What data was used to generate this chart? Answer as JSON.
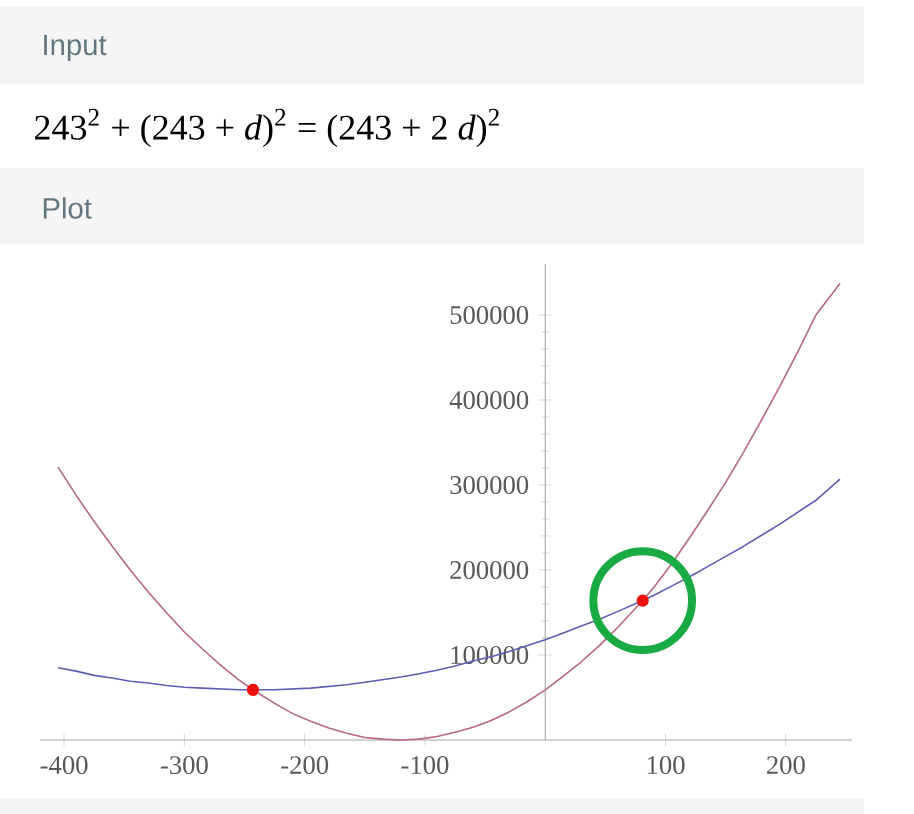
{
  "chart_data": {
    "type": "line",
    "title": "243$^{2}$ + (243 + *d*)$^{2}$ = (243 + 2 *d*)$^{2}$",
    "annotations": [
      "Input",
      "Plot"
    ],
    "xlim": [
      -420,
      255
    ],
    "ylim": [
      0,
      560000
    ],
    "xticks": [
      -400,
      -300,
      -200,
      -100,
      100,
      200
    ],
    "yticks": [
      100000,
      200000,
      300000,
      400000,
      500000
    ],
    "grid": false,
    "series": [
      {
        "color": "#5d5db5",
        "marker": "none",
        "x": [
          -405,
          -390,
          -375,
          -360,
          -345,
          -330,
          -315,
          -300,
          -285,
          -270,
          -255,
          -243,
          -225,
          -210,
          -195,
          -180,
          -165,
          -150,
          -135,
          -120,
          -105,
          -90,
          -75,
          -60,
          -45,
          -30,
          -15,
          0,
          15,
          30,
          45,
          60,
          81,
          90,
          105,
          120,
          135,
          150,
          165,
          180,
          195,
          210,
          225,
          245
        ],
        "values": [
          85000,
          81000,
          76000,
          73000,
          69000,
          67000,
          64000,
          62000,
          61000,
          60000,
          59000,
          59000,
          59000,
          60000,
          61000,
          63000,
          65000,
          68000,
          71000,
          74000,
          78000,
          82000,
          87000,
          93000,
          98000,
          104000,
          111000,
          118000,
          126000,
          134000,
          142000,
          151000,
          164000,
          170000,
          181000,
          192000,
          204000,
          216000,
          228000,
          241000,
          254000,
          268000,
          282000,
          307000
        ]
      },
      {
        "color": "#b8677f",
        "marker": "none",
        "x": [
          -405,
          -390,
          -375,
          -360,
          -345,
          -330,
          -315,
          -300,
          -285,
          -270,
          -255,
          -243,
          -225,
          -210,
          -195,
          -180,
          -165,
          -150,
          -135,
          -120,
          -105,
          -90,
          -75,
          -60,
          -45,
          -30,
          -15,
          0,
          15,
          30,
          45,
          60,
          81,
          90,
          105,
          120,
          135,
          150,
          165,
          180,
          195,
          210,
          225,
          245
        ],
        "values": [
          321000,
          288000,
          257000,
          228000,
          200000,
          174000,
          150000,
          127000,
          107000,
          88000,
          71000,
          59000,
          43000,
          31000,
          22000,
          14000,
          8000,
          3000,
          1000,
          0,
          1000,
          4000,
          9000,
          15000,
          23000,
          33000,
          45000,
          59000,
          75000,
          92000,
          111000,
          132000,
          164000,
          179000,
          207000,
          238000,
          270000,
          303000,
          339000,
          377000,
          416000,
          457000,
          500000,
          537000
        ]
      },
      {
        "type": "scatter",
        "color": "#ee1111",
        "marker": "circle",
        "x": [
          -243,
          81
        ],
        "values": [
          59000,
          164000
        ]
      }
    ]
  }
}
